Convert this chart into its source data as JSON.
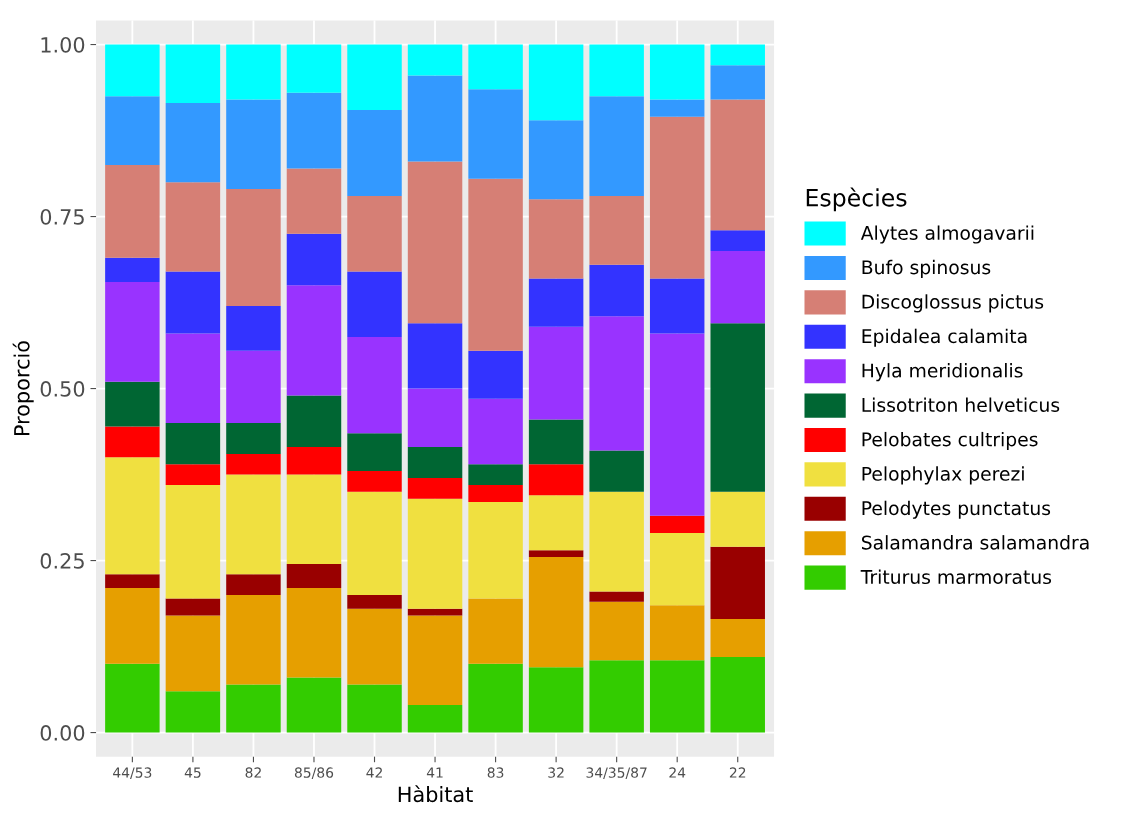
{
  "chart_data": {
    "type": "bar",
    "stacked": true,
    "xlabel": "Hàbitat",
    "ylabel": "Proporció",
    "legend_title": "Espècies",
    "legend": "right",
    "grid": true,
    "categories": [
      "44/53",
      "45",
      "82",
      "85/86",
      "42",
      "41",
      "83",
      "32",
      "34/35/87",
      "24",
      "22"
    ],
    "ylim": [
      -0.035,
      1.035
    ],
    "yticks": [
      {
        "value": 0,
        "label": "0.00"
      },
      {
        "value": 0.25,
        "label": "0.25"
      },
      {
        "value": 0.5,
        "label": "0.50"
      },
      {
        "value": 0.75,
        "label": "0.75"
      },
      {
        "value": 1,
        "label": "1.00"
      }
    ],
    "series": [
      {
        "name": "Triturus marmoratus",
        "color": "#33cc00",
        "values": [
          0.1,
          0.06,
          0.07,
          0.08,
          0.07,
          0.04,
          0.1,
          0.095,
          0.105,
          0.105,
          0.11
        ]
      },
      {
        "name": "Salamandra salamandra",
        "color": "#e69f00",
        "values": [
          0.11,
          0.11,
          0.13,
          0.13,
          0.11,
          0.13,
          0.095,
          0.16,
          0.085,
          0.08,
          0.055
        ]
      },
      {
        "name": "Pelodytes punctatus",
        "color": "#990000",
        "values": [
          0.02,
          0.025,
          0.03,
          0.035,
          0.02,
          0.01,
          0,
          0.01,
          0.015,
          0,
          0.105
        ]
      },
      {
        "name": "Pelophylax perezi",
        "color": "#f0e040",
        "values": [
          0.17,
          0.165,
          0.145,
          0.13,
          0.15,
          0.16,
          0.14,
          0.08,
          0.145,
          0.105,
          0.08
        ]
      },
      {
        "name": "Pelobates cultripes",
        "color": "#ff0000",
        "values": [
          0.045,
          0.03,
          0.03,
          0.04,
          0.03,
          0.03,
          0.025,
          0.045,
          0,
          0.025,
          0
        ]
      },
      {
        "name": "Lissotriton helveticus",
        "color": "#006633",
        "values": [
          0.065,
          0.06,
          0.045,
          0.075,
          0.055,
          0.045,
          0.03,
          0.065,
          0.06,
          0,
          0.245
        ]
      },
      {
        "name": "Hyla meridionalis",
        "color": "#9933ff",
        "values": [
          0.145,
          0.13,
          0.105,
          0.16,
          0.14,
          0.085,
          0.095,
          0.135,
          0.195,
          0.265,
          0.105
        ]
      },
      {
        "name": "Epidalea calamita",
        "color": "#3333ff",
        "values": [
          0.035,
          0.09,
          0.065,
          0.075,
          0.095,
          0.095,
          0.07,
          0.07,
          0.075,
          0.08,
          0.03
        ]
      },
      {
        "name": "Discoglossus pictus",
        "color": "#d67f75",
        "values": [
          0.135,
          0.13,
          0.17,
          0.095,
          0.11,
          0.235,
          0.25,
          0.115,
          0.1,
          0.235,
          0.19
        ]
      },
      {
        "name": "Bufo spinosus",
        "color": "#3399ff",
        "values": [
          0.1,
          0.115,
          0.13,
          0.11,
          0.125,
          0.125,
          0.13,
          0.115,
          0.145,
          0.025,
          0.05
        ]
      },
      {
        "name": "Alytes almogavarii",
        "color": "#00ffff",
        "values": [
          0.075,
          0.085,
          0.08,
          0.07,
          0.095,
          0.045,
          0.065,
          0.11,
          0.075,
          0.08,
          0.03
        ]
      }
    ]
  }
}
